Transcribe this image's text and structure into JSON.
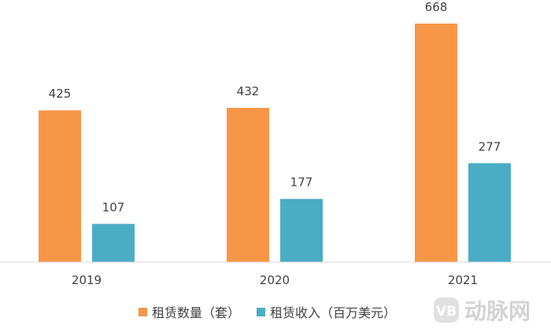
{
  "chart_data": {
    "type": "bar",
    "categories": [
      "2019",
      "2020",
      "2021"
    ],
    "series": [
      {
        "name": "租赁数量（套）",
        "values": [
          425,
          432,
          668
        ],
        "color": "#f79646"
      },
      {
        "name": "租赁收入（百万美元）",
        "values": [
          107,
          177,
          277
        ],
        "color": "#4bacc6"
      }
    ],
    "ylim": [
      0,
      700
    ],
    "grid": false,
    "legend": "bottom",
    "axis_color": "#d9d9d9"
  },
  "watermark": {
    "text": "动脉网",
    "logo_icon": "vb-logo-icon"
  }
}
